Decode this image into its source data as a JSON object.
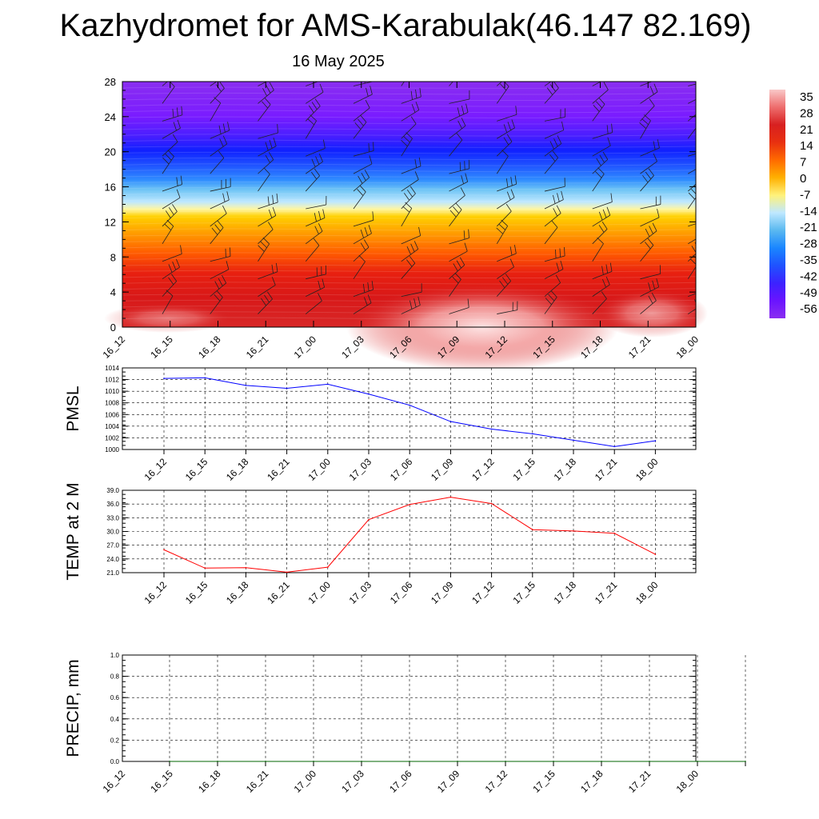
{
  "title": "Kazhydromet for AMS-Karabulak(46.147 82.169)",
  "subtitle": "16 May 2025",
  "time_labels": [
    "16_12",
    "16_15",
    "16_18",
    "16_21",
    "17_00",
    "17_03",
    "17_06",
    "17_09",
    "17_12",
    "17_15",
    "17_18",
    "17_21",
    "18_00"
  ],
  "colorbar": {
    "labels": [
      "35",
      "28",
      "21",
      "14",
      "7",
      "0",
      "-7",
      "-14",
      "-21",
      "-28",
      "-35",
      "-42",
      "-49",
      "-56"
    ],
    "colors": [
      "#f9c8c8",
      "#ee6e6e",
      "#d82020",
      "#e83010",
      "#ff6a00",
      "#ffb000",
      "#fff27a",
      "#bfe8ff",
      "#5ab8f0",
      "#1a86ff",
      "#1f52ff",
      "#3c22ff",
      "#6a14ff",
      "#8a2ef0"
    ]
  },
  "chart_data": [
    {
      "type": "heatmap",
      "title": "",
      "xlabel": "",
      "ylabel": "",
      "x": [
        "16_12",
        "16_15",
        "16_18",
        "16_21",
        "17_00",
        "17_03",
        "17_06",
        "17_09",
        "17_12",
        "17_15",
        "17_18",
        "17_21",
        "18_00"
      ],
      "ylim": [
        0,
        28
      ],
      "yticks": [
        "0",
        "4",
        "8",
        "12",
        "16",
        "20",
        "24",
        "28"
      ],
      "colorbar_range": [
        -56,
        35
      ],
      "note_visible": "temperature by height; wind barbs drawn"
    },
    {
      "type": "line",
      "ylabel": "PMSL",
      "x": [
        "16_12",
        "16_15",
        "16_18",
        "16_21",
        "17_00",
        "17_03",
        "17_06",
        "17_09",
        "17_12",
        "17_15",
        "17_18",
        "17_21",
        "18_00"
      ],
      "ylim": [
        1000,
        1014
      ],
      "yticks": [
        "1000",
        "1002",
        "1004",
        "1006",
        "1008",
        "1010",
        "1012",
        "1014"
      ],
      "series": [
        {
          "values": [
            1012.2,
            1012.3,
            1011.0,
            1010.5,
            1011.2,
            1009.5,
            1007.6,
            1004.8,
            1003.5,
            1002.7,
            1001.6,
            1000.5,
            1001.5
          ],
          "color": "#0000ff"
        }
      ]
    },
    {
      "type": "line",
      "ylabel": "TEMP at 2 M",
      "x": [
        "16_12",
        "16_15",
        "16_18",
        "16_21",
        "17_00",
        "17_03",
        "17_06",
        "17_09",
        "17_12",
        "17_15",
        "17_18",
        "17_21",
        "18_00"
      ],
      "ylim": [
        21,
        39
      ],
      "yticks": [
        "21.0",
        "24.0",
        "27.0",
        "30.0",
        "33.0",
        "36.0",
        "39.0"
      ],
      "series": [
        {
          "values": [
            26.0,
            22.0,
            22.1,
            21.1,
            22.2,
            32.6,
            35.9,
            37.5,
            36.1,
            30.4,
            30.1,
            29.6,
            25.0
          ],
          "color": "#ff0000"
        }
      ]
    },
    {
      "type": "line",
      "ylabel": "PRECIP, mm",
      "x": [
        "16_12",
        "16_15",
        "16_18",
        "16_21",
        "17_00",
        "17_03",
        "17_06",
        "17_09",
        "17_12",
        "17_15",
        "17_18",
        "17_21",
        "18_00"
      ],
      "ylim": [
        0,
        1
      ],
      "yticks": [
        "0.0",
        "0.2",
        "0.4",
        "0.6",
        "0.8",
        "1.0"
      ],
      "series": [
        {
          "values": [
            0,
            0,
            0,
            0,
            0,
            0,
            0,
            0,
            0,
            0,
            0,
            0,
            0
          ],
          "color": "#006400"
        }
      ]
    }
  ]
}
